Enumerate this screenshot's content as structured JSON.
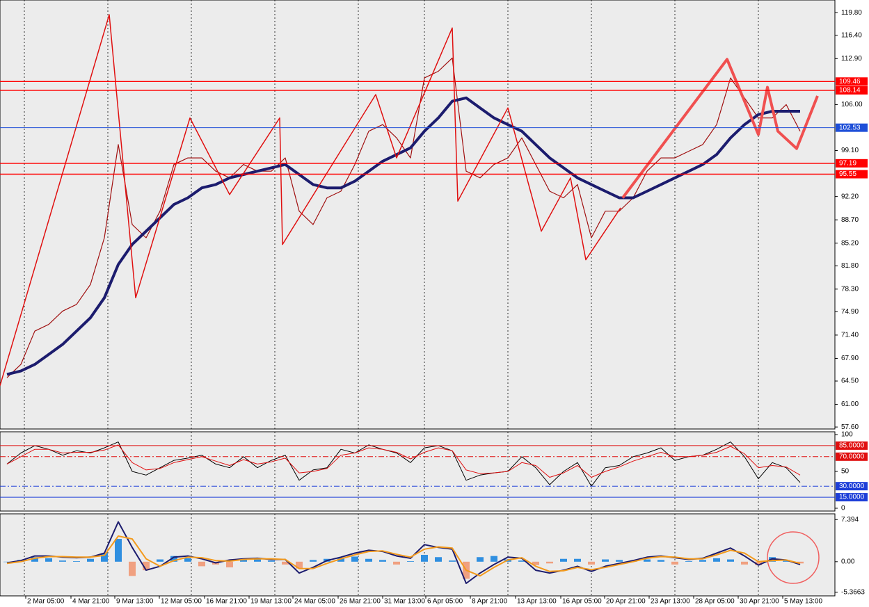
{
  "chart_data": [
    {
      "type": "line",
      "xlim": [
        0,
        60
      ],
      "ylim": [
        57.3,
        121.7
      ],
      "yticks": [
        {
          "value": 119.8,
          "label": "119.80"
        },
        {
          "value": 116.4,
          "label": "116.40"
        },
        {
          "value": 112.9,
          "label": "112.90"
        },
        {
          "value": 106,
          "label": "106.00"
        },
        {
          "value": 99.1,
          "label": "99.10"
        },
        {
          "value": 92.2,
          "label": "92.20"
        },
        {
          "value": 88.7,
          "label": "88.70"
        },
        {
          "value": 85.2,
          "label": "85.20"
        },
        {
          "value": 81.8,
          "label": "81.80"
        },
        {
          "value": 78.3,
          "label": "78.30"
        },
        {
          "value": 74.9,
          "label": "74.90"
        },
        {
          "value": 71.4,
          "label": "71.40"
        },
        {
          "value": 67.9,
          "label": "67.90"
        },
        {
          "value": 64.5,
          "label": "64.50"
        },
        {
          "value": 61,
          "label": "61.00"
        },
        {
          "value": 57.6,
          "label": "57.60"
        }
      ],
      "levels": [
        {
          "value": 109.46,
          "color": "#ff0000"
        },
        {
          "value": 108.14,
          "color": "#ff0000"
        },
        {
          "value": 102.53,
          "color": "#1e4fd8"
        },
        {
          "value": 97.19,
          "color": "#ff0000"
        },
        {
          "value": 95.55,
          "color": "#ff0000"
        }
      ],
      "series": [
        {
          "color": "#a01010",
          "width": 1.2,
          "values": [
            65,
            67,
            72,
            73,
            75,
            76,
            79,
            86,
            100,
            88,
            86,
            90,
            97,
            98,
            98,
            96,
            95,
            97,
            96,
            96,
            98,
            90,
            88,
            92,
            93,
            97,
            102,
            103,
            101,
            98,
            110,
            111,
            113,
            96,
            95,
            97,
            98,
            101,
            97,
            93,
            92,
            94,
            86,
            90,
            90,
            92,
            96,
            98,
            98,
            99,
            100,
            103,
            110,
            107,
            104,
            104,
            106,
            102
          ]
        },
        {
          "color": "#1c1c6e",
          "width": 4,
          "values": [
            65.5,
            66,
            67,
            68.5,
            70,
            72,
            74,
            77,
            82,
            85,
            87,
            89,
            91,
            92,
            93.5,
            94,
            95,
            95.5,
            96,
            96.5,
            97,
            95.5,
            94,
            93.5,
            93.5,
            94.5,
            96,
            97.5,
            98.5,
            99.5,
            102,
            104,
            106.5,
            107,
            105.5,
            104,
            103,
            102,
            100,
            98,
            96.5,
            95,
            94,
            93,
            92,
            92,
            93,
            94,
            95,
            96,
            97,
            98.5,
            101,
            103,
            104.5,
            105,
            105,
            105
          ]
        },
        {
          "color": "#e01010",
          "width": 1.5,
          "x": [
            0,
            7.85,
            9.75,
            13.65,
            16.5,
            20.1,
            20.3,
            27,
            28.5,
            32.5,
            32.9,
            36.5,
            38.9,
            41,
            42.1,
            44.6
          ],
          "values": [
            63.8,
            119.5,
            77,
            104,
            92.5,
            104,
            85,
            107.5,
            98,
            117.5,
            91.5,
            105.5,
            87,
            95,
            82.7,
            90.5
          ]
        },
        {
          "color": "#f05050",
          "width": 4,
          "x": [
            44.75,
            52.25,
            54.5,
            55.15,
            55.9,
            57.25,
            58.75
          ],
          "values": [
            92,
            112.8,
            101.5,
            108.6,
            102,
            99.4,
            107.3
          ]
        }
      ]
    },
    {
      "type": "line",
      "xlim": [
        0,
        60
      ],
      "ylim": [
        -3.8,
        103.8
      ],
      "yticks": [
        100,
        50,
        0
      ],
      "levels": [
        {
          "value": 85,
          "label": "85.0000",
          "color": "#e01010"
        },
        {
          "value": 70,
          "label": "70.0000",
          "color": "#e01010"
        },
        {
          "value": 30,
          "label": "30.0000",
          "color": "#1e3fd8"
        },
        {
          "value": 15,
          "label": "15.0000",
          "color": "#1e3fd8"
        }
      ],
      "series": [
        {
          "color": "#000000",
          "width": 1,
          "values": [
            60,
            75,
            85,
            80,
            72,
            78,
            75,
            82,
            90,
            50,
            45,
            55,
            65,
            68,
            72,
            60,
            55,
            70,
            55,
            65,
            72,
            38,
            52,
            55,
            80,
            75,
            86,
            80,
            75,
            62,
            82,
            85,
            78,
            38,
            45,
            48,
            50,
            70,
            55,
            32,
            50,
            62,
            30,
            55,
            58,
            70,
            75,
            82,
            65,
            70,
            72,
            80,
            90,
            70,
            40,
            62,
            55,
            35
          ]
        },
        {
          "color": "#e01010",
          "width": 1,
          "values": [
            60,
            70,
            80,
            80,
            75,
            76,
            76,
            79,
            86,
            62,
            52,
            54,
            62,
            66,
            70,
            64,
            58,
            66,
            60,
            63,
            68,
            48,
            50,
            54,
            72,
            75,
            82,
            80,
            76,
            67,
            76,
            82,
            78,
            52,
            47,
            48,
            50,
            62,
            58,
            42,
            48,
            58,
            42,
            50,
            56,
            64,
            70,
            76,
            70,
            70,
            72,
            76,
            84,
            74,
            55,
            58,
            56,
            45
          ]
        }
      ]
    },
    {
      "type": "line",
      "xlim": [
        0,
        60
      ],
      "ylim": [
        -6.0,
        8.4
      ],
      "yticks": [
        7.394,
        {
          "value": 0,
          "label": "0.00"
        },
        -5.3663
      ],
      "xticks": [
        {
          "value": 1.85,
          "label": "2 Mar 05:00"
        },
        {
          "value": 5.1,
          "label": "4 Mar 21:00"
        },
        {
          "value": 8.25,
          "label": "9 Mar 13:00"
        },
        {
          "value": 11.45,
          "label": "12 Mar 05:00"
        },
        {
          "value": 14.7,
          "label": "16 Mar 21:00"
        },
        {
          "value": 17.9,
          "label": "19 Mar 13:00"
        },
        {
          "value": 21.05,
          "label": "24 Mar 05:00"
        },
        {
          "value": 24.3,
          "label": "26 Mar 21:00"
        },
        {
          "value": 27.5,
          "label": "31 Mar 13:00"
        },
        {
          "value": 30.6,
          "label": "6 Apr 05:00"
        },
        {
          "value": 33.8,
          "label": "8 Apr 21:00"
        },
        {
          "value": 37.05,
          "label": "13 Apr 13:00"
        },
        {
          "value": 40.3,
          "label": "16 Apr 05:00"
        },
        {
          "value": 43.45,
          "label": "20 Apr 21:00"
        },
        {
          "value": 46.65,
          "label": "23 Apr 13:00"
        },
        {
          "value": 49.85,
          "label": "28 Apr 05:00"
        },
        {
          "value": 53.05,
          "label": "30 Apr 21:00"
        },
        {
          "value": 56.25,
          "label": "5 May 13:00"
        }
      ],
      "series": [
        {
          "kind": "histogram",
          "color": "#2f8fe0",
          "negative_color": "#f0a080",
          "values": [
            0,
            0.3,
            0.8,
            0.6,
            0.2,
            0.1,
            0.5,
            1.5,
            4,
            -2.5,
            -1.5,
            0.4,
            1,
            0.6,
            -0.8,
            -0.5,
            -1,
            0.3,
            0.4,
            0.2,
            -0.5,
            -1.2,
            0.3,
            0.5,
            0.7,
            0.9,
            0.5,
            0.3,
            -0.5,
            0.1,
            1.2,
            0.8,
            0.2,
            -3,
            0.8,
            1,
            0.4,
            0.2,
            -0.6,
            -0.3,
            0.5,
            0.5,
            -0.5,
            0.4,
            0.3,
            0.2,
            0.4,
            0.3,
            -0.5,
            0.1,
            0.3,
            0.6,
            0.4,
            -0.5,
            -0.6,
            0.8,
            0.3,
            -0.3
          ]
        },
        {
          "color": "#1c1c6e",
          "width": 2,
          "values": [
            -0.2,
            0.2,
            1,
            1,
            0.8,
            0.7,
            0.8,
            1.5,
            7,
            2.5,
            -1.5,
            -0.8,
            0.8,
            1,
            0.5,
            -0.2,
            0.3,
            0.5,
            0.6,
            0.4,
            0.4,
            -2,
            -1,
            0.2,
            0.8,
            1.5,
            2,
            1.8,
            1,
            0.6,
            3,
            2.5,
            2.2,
            -3.8,
            -2,
            -0.5,
            0.8,
            0.6,
            -1.5,
            -2,
            -1.5,
            -0.8,
            -1.7,
            -0.8,
            -0.3,
            0.2,
            0.8,
            1,
            0.7,
            0.4,
            0.6,
            1.5,
            2.4,
            1,
            -0.6,
            0.5,
            0.3,
            -0.5
          ]
        },
        {
          "color": "#f39a1c",
          "width": 2,
          "values": [
            -0.3,
            0,
            0.6,
            0.9,
            0.9,
            0.8,
            0.8,
            1.1,
            4.5,
            4,
            0.5,
            -0.8,
            0.2,
            0.8,
            0.7,
            0.2,
            0.1,
            0.4,
            0.5,
            0.5,
            0.4,
            -1.2,
            -1.2,
            -0.3,
            0.5,
            1.2,
            1.8,
            1.9,
            1.3,
            0.8,
            2.2,
            2.6,
            2.4,
            -1.5,
            -2.5,
            -1,
            0.3,
            0.7,
            -0.8,
            -1.7,
            -1.6,
            -1,
            -1.4,
            -1,
            -0.5,
            0,
            0.6,
            0.9,
            0.8,
            0.5,
            0.5,
            1.2,
            2,
            1.5,
            0,
            0.2,
            0.3,
            -0.3
          ]
        }
      ]
    }
  ]
}
